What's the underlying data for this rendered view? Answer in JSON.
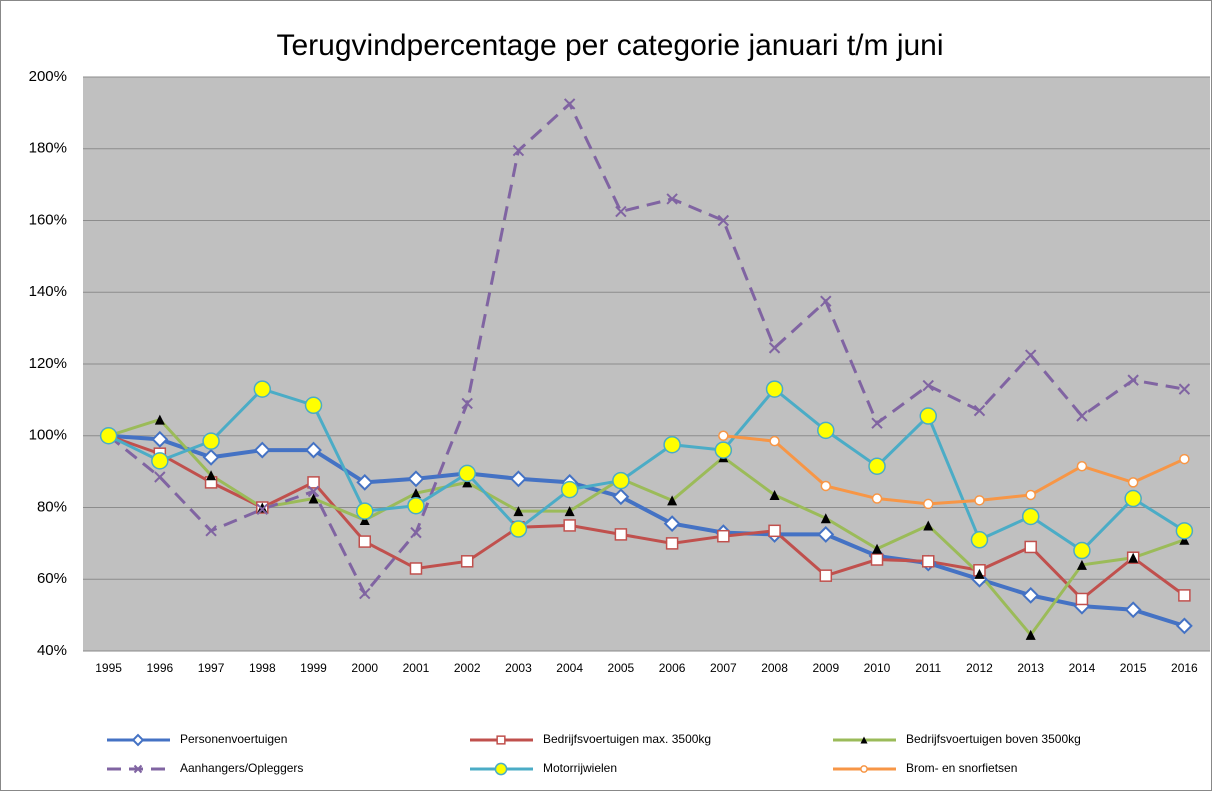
{
  "chart_data": {
    "type": "line",
    "title": "Terugvindpercentage per categorie januari t/m juni",
    "categories": [
      "1995",
      "1996",
      "1997",
      "1998",
      "1999",
      "2000",
      "2001",
      "2002",
      "2003",
      "2004",
      "2005",
      "2006",
      "2007",
      "2008",
      "2009",
      "2010",
      "2011",
      "2012",
      "2013",
      "2014",
      "2015",
      "2016"
    ],
    "ylim": [
      40,
      200
    ],
    "yticks": [
      {
        "value": 40,
        "label": "40%"
      },
      {
        "value": 60,
        "label": "60%"
      },
      {
        "value": 80,
        "label": "80%"
      },
      {
        "value": 100,
        "label": "100%"
      },
      {
        "value": 120,
        "label": "120%"
      },
      {
        "value": 140,
        "label": "140%"
      },
      {
        "value": 160,
        "label": "160%"
      },
      {
        "value": 180,
        "label": "180%"
      },
      {
        "value": 200,
        "label": "200%"
      }
    ],
    "grid": true,
    "legend": "bottom",
    "series": [
      {
        "name": "Personenvoertuigen",
        "color": "#4472c4",
        "marker": "diamond",
        "dashed": false,
        "values": [
          100,
          99,
          94,
          96,
          96,
          87,
          88,
          89.5,
          88,
          87,
          83,
          75.5,
          73,
          72.5,
          72.5,
          66.5,
          64.5,
          60,
          55.5,
          52.5,
          51.5,
          47
        ]
      },
      {
        "name": "Bedrijfsvoertuigen max. 3500kg",
        "color": "#c0504d",
        "marker": "square",
        "dashed": false,
        "values": [
          100,
          95,
          87,
          80,
          87,
          70.5,
          63,
          65,
          74.5,
          75,
          72.5,
          70,
          72,
          73.5,
          61,
          65.5,
          65,
          62.5,
          69,
          54.5,
          66,
          55.5
        ]
      },
      {
        "name": "Bedrijfsvoertuigen boven 3500kg",
        "color": "#9bbb59",
        "marker": "triangle",
        "dashed": false,
        "values": [
          100,
          104.5,
          89,
          80,
          82.5,
          76.5,
          84,
          87,
          79,
          79,
          88,
          82,
          94,
          83.5,
          77,
          68.5,
          75,
          61.5,
          44.5,
          64,
          66,
          71
        ]
      },
      {
        "name": "Aanhangers/Opleggers",
        "color": "#8064a2",
        "marker": "x",
        "dashed": true,
        "values": [
          100,
          88.5,
          73.5,
          79.5,
          84.5,
          56,
          73,
          109,
          179.5,
          192.5,
          162.5,
          166,
          160,
          124.5,
          137.5,
          103.5,
          114,
          107,
          122.5,
          105.5,
          115.5,
          113
        ]
      },
      {
        "name": "Motorrijwielen",
        "color": "#4bacc6",
        "marker": "bigcircle",
        "dashed": false,
        "values": [
          100,
          93,
          98.5,
          113,
          108.5,
          79,
          80.5,
          89.5,
          74,
          85,
          87.5,
          97.5,
          96,
          113,
          101.5,
          91.5,
          105.5,
          71,
          77.5,
          68,
          82.5,
          73.5
        ]
      },
      {
        "name": "Brom- en snorfietsen",
        "color": "#f79646",
        "marker": "circle",
        "dashed": false,
        "values": [
          null,
          null,
          null,
          null,
          null,
          null,
          null,
          null,
          null,
          null,
          null,
          null,
          100,
          98.5,
          86,
          82.5,
          81,
          82,
          83.5,
          91.5,
          87,
          93.5
        ]
      }
    ]
  }
}
